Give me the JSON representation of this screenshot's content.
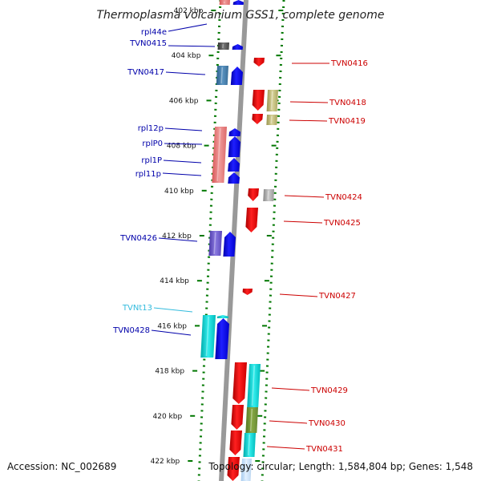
{
  "title": "Thermoplasma volcanium GSS1, complete genome",
  "footer": {
    "accession": "Accession: NC_002689",
    "topology": "Topology: circular; Length: 1,584,804 bp; Genes: 1,548"
  },
  "colors": {
    "forward_label": "#0000aa",
    "reverse_label": "#cc0000",
    "trna_label": "#33bbdd",
    "tick": "#007700",
    "genome_axis": "#999999"
  },
  "ticks": [
    {
      "label": "402 kbp",
      "kbp": 402
    },
    {
      "label": "404 kbp",
      "kbp": 404
    },
    {
      "label": "406 kbp",
      "kbp": 406
    },
    {
      "label": "408 kbp",
      "kbp": 408
    },
    {
      "label": "410 kbp",
      "kbp": 410
    },
    {
      "label": "412 kbp",
      "kbp": 412
    },
    {
      "label": "414 kbp",
      "kbp": 414
    },
    {
      "label": "416 kbp",
      "kbp": 416
    },
    {
      "label": "418 kbp",
      "kbp": 418
    },
    {
      "label": "420 kbp",
      "kbp": 420
    },
    {
      "label": "422 kbp",
      "kbp": 422
    }
  ],
  "genes_left": [
    {
      "label": "rpl44e",
      "kind": "cds"
    },
    {
      "label": "TVN0415",
      "kind": "cds"
    },
    {
      "label": "TVN0417",
      "kind": "cds"
    },
    {
      "label": "rpl12p",
      "kind": "cds"
    },
    {
      "label": "rplP0",
      "kind": "cds"
    },
    {
      "label": "rpl1P",
      "kind": "cds"
    },
    {
      "label": "rpl11p",
      "kind": "cds"
    },
    {
      "label": "TVN0426",
      "kind": "cds"
    },
    {
      "label": "TVNt13",
      "kind": "trna"
    },
    {
      "label": "TVN0428",
      "kind": "cds"
    }
  ],
  "genes_right": [
    {
      "label": "TVN0416"
    },
    {
      "label": "TVN0418"
    },
    {
      "label": "TVN0419"
    },
    {
      "label": "TVN0424"
    },
    {
      "label": "TVN0425"
    },
    {
      "label": "TVN0427"
    },
    {
      "label": "TVN0429"
    },
    {
      "label": "TVN0430"
    },
    {
      "label": "TVN0431"
    }
  ]
}
